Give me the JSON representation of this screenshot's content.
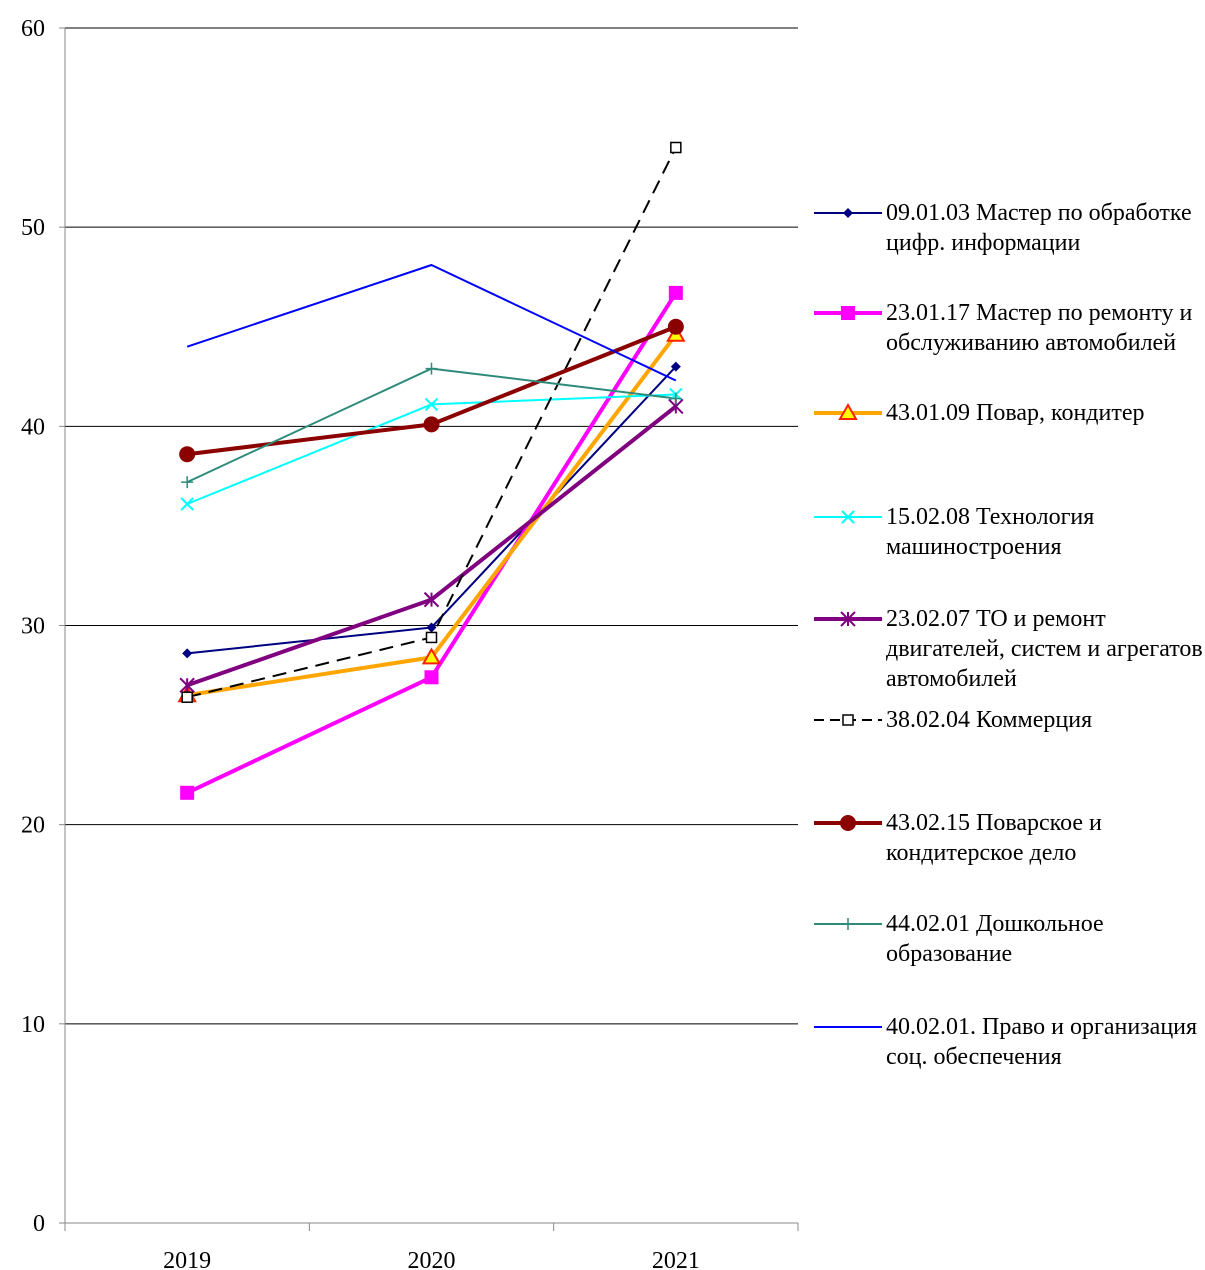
{
  "chart_data": {
    "type": "line",
    "categories": [
      "2019",
      "2020",
      "2021"
    ],
    "ylim": [
      0,
      60
    ],
    "yticks": [
      "0",
      "10",
      "20",
      "30",
      "40",
      "50",
      "60"
    ],
    "grid": true,
    "legend_position": "right",
    "series": [
      {
        "name": "09.01.03 Мастер по обработке цифр. информации",
        "values": [
          28.6,
          29.9,
          43.0
        ],
        "color": "#000080",
        "marker": "diamond",
        "dash": "solid"
      },
      {
        "name": "23.01.17 Мастер по ремонту и обслуживанию автомобилей",
        "values": [
          21.6,
          27.4,
          46.7
        ],
        "color": "#ff00ff",
        "marker": "square",
        "dash": "solid"
      },
      {
        "name": "43.01.09 Повар, кондитер",
        "values": [
          26.5,
          28.4,
          44.6
        ],
        "color": "#ffa500",
        "marker": "triangle",
        "dash": "solid"
      },
      {
        "name": "15.02.08 Технология машиностроения",
        "values": [
          36.1,
          41.1,
          41.6
        ],
        "color": "#00ffff",
        "marker": "x",
        "dash": "solid"
      },
      {
        "name": "23.02.07 ТО и ремонт двигателей, систем и агрегатов автомобилей",
        "values": [
          27.0,
          31.3,
          41.0
        ],
        "color": "#800080",
        "marker": "star",
        "dash": "solid"
      },
      {
        "name": "38.02.04 Коммерция",
        "values": [
          26.4,
          29.4,
          54.0
        ],
        "color": "#000000",
        "marker": "open-square",
        "dash": "dashed"
      },
      {
        "name": "43.02.15 Поварское и кондитерское дело",
        "values": [
          38.6,
          40.1,
          45.0
        ],
        "color": "#8b0000",
        "marker": "circle",
        "dash": "solid"
      },
      {
        "name": "44.02.01 Дошкольное образование",
        "values": [
          37.2,
          42.9,
          41.4
        ],
        "color": "#2e8b7a",
        "marker": "plus",
        "dash": "solid"
      },
      {
        "name": "40.02.01. Право и организация соц. обеспечения",
        "values": [
          44.0,
          48.1,
          42.3
        ],
        "color": "#0000ff",
        "marker": "none",
        "dash": "solid"
      }
    ]
  }
}
